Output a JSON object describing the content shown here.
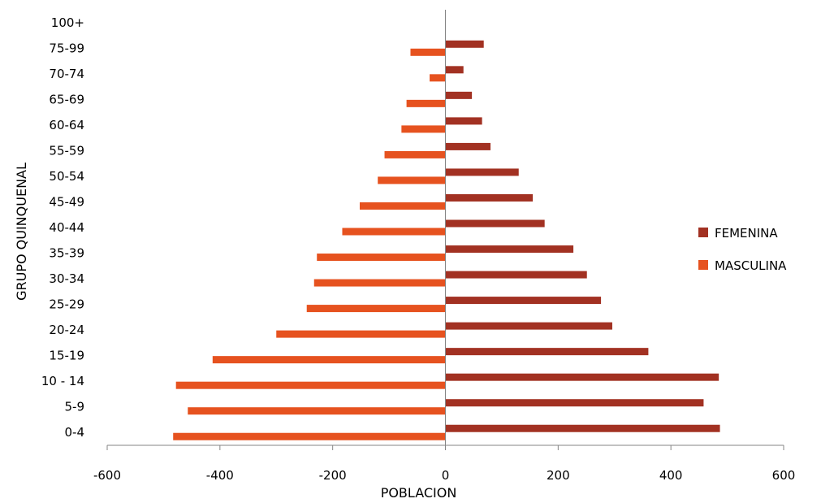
{
  "chart_data": {
    "type": "bar",
    "orientation": "horizontal",
    "categories": [
      "0-4",
      "5-9",
      "10 - 14",
      "15-19",
      "20-24",
      "25-29",
      "30-34",
      "35-39",
      "40-44",
      "45-49",
      "50-54",
      "55-59",
      "60-64",
      "65-69",
      "70-74",
      "75-99",
      "100+"
    ],
    "series": [
      {
        "name": "FEMENINA",
        "color": "#a23122",
        "values": [
          487,
          458,
          485,
          360,
          296,
          276,
          251,
          227,
          176,
          155,
          130,
          80,
          65,
          47,
          32,
          68,
          0
        ]
      },
      {
        "name": "MASCULINA",
        "color": "#e6521f",
        "values": [
          -483,
          -457,
          -478,
          -413,
          -300,
          -246,
          -233,
          -228,
          -183,
          -152,
          -120,
          -108,
          -78,
          -69,
          -28,
          -62,
          0
        ]
      }
    ],
    "xlabel": "POBLACION",
    "ylabel": "GRUPO QUINQUENAL",
    "xlim": [
      -600,
      600
    ],
    "xticks": [
      -600,
      -400,
      -200,
      0,
      200,
      400,
      600
    ],
    "legend_position": "right",
    "grid": false
  }
}
